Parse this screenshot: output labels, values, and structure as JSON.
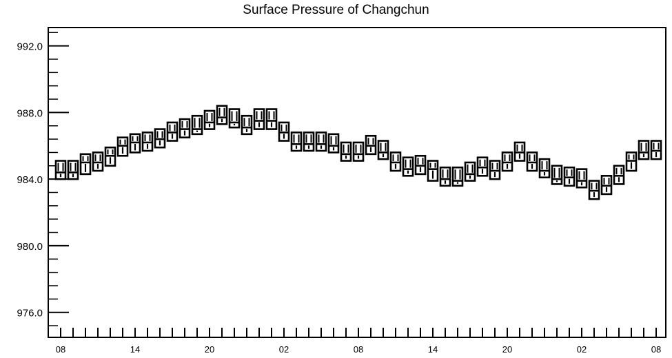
{
  "chart_data": {
    "type": "boxplot",
    "title": "Surface Pressure of Changchun",
    "xlabel": "",
    "ylabel": "",
    "ylim": [
      974.5,
      993.1
    ],
    "y_ticks": [
      "992.0",
      "988.0",
      "984.0",
      "980.0",
      "976.0"
    ],
    "y_tick_values": [
      992,
      988,
      984,
      980,
      976
    ],
    "x_tick_labels": [
      "08",
      "14",
      "20",
      "02",
      "08",
      "14",
      "20",
      "02",
      "08"
    ],
    "x_tick_hours": [
      0,
      6,
      12,
      18,
      24,
      30,
      36,
      42,
      48
    ],
    "grid": false,
    "series": [
      {
        "hours": [
          0,
          1,
          2,
          3,
          4,
          5,
          6,
          7,
          8,
          9,
          10,
          11,
          12,
          13,
          14,
          15,
          16,
          17,
          18,
          19,
          20,
          21,
          22,
          23,
          24,
          25,
          26,
          27,
          28,
          29,
          30,
          31,
          32,
          33,
          34,
          35,
          36,
          37,
          38,
          39,
          40,
          41,
          42,
          43,
          44,
          45,
          46,
          47,
          48
        ],
        "upper": [
          985.1,
          985.1,
          985.5,
          985.6,
          985.9,
          986.5,
          986.7,
          986.8,
          987.0,
          987.4,
          987.6,
          987.8,
          988.1,
          988.4,
          988.2,
          987.8,
          988.2,
          988.2,
          987.4,
          986.8,
          986.8,
          986.8,
          986.7,
          986.2,
          986.2,
          986.6,
          986.3,
          985.6,
          985.3,
          985.4,
          985.1,
          984.7,
          984.7,
          985.0,
          985.3,
          985.1,
          985.6,
          986.2,
          985.6,
          985.2,
          984.8,
          984.7,
          984.6,
          983.9,
          984.2,
          984.8,
          985.6,
          986.3,
          986.3
        ],
        "lower": [
          984.0,
          984.0,
          984.3,
          984.5,
          984.8,
          985.4,
          985.6,
          985.7,
          985.9,
          986.3,
          986.5,
          986.7,
          987.0,
          987.3,
          987.1,
          986.7,
          987.0,
          987.0,
          986.3,
          985.7,
          985.7,
          985.7,
          985.6,
          985.1,
          985.1,
          985.5,
          985.2,
          984.5,
          984.2,
          984.3,
          983.9,
          983.6,
          983.6,
          983.9,
          984.2,
          984.0,
          984.5,
          985.1,
          984.5,
          984.1,
          983.7,
          983.6,
          983.5,
          982.8,
          983.1,
          983.7,
          984.5,
          985.2,
          985.2
        ],
        "median": [
          984.4,
          984.4,
          985.0,
          985.0,
          985.4,
          986.0,
          986.2,
          986.2,
          986.4,
          986.8,
          987.0,
          987.0,
          987.4,
          987.7,
          987.4,
          987.1,
          987.5,
          987.5,
          986.8,
          986.1,
          986.1,
          986.1,
          986.0,
          985.5,
          985.5,
          986.0,
          985.6,
          985.0,
          984.6,
          984.8,
          984.6,
          984.0,
          983.9,
          984.3,
          984.7,
          984.5,
          985.0,
          985.6,
          985.0,
          984.5,
          984.0,
          984.1,
          983.9,
          983.3,
          983.6,
          984.2,
          985.1,
          985.6,
          985.7
        ]
      }
    ]
  }
}
